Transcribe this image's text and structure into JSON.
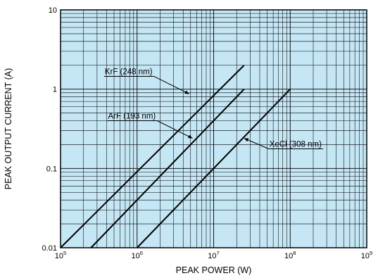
{
  "chart_data": {
    "type": "line",
    "title": "",
    "xlabel": "PEAK POWER (W)",
    "ylabel": "PEAK OUTPUT CURRENT (A)",
    "x_scale": "log",
    "y_scale": "log",
    "xlim": [
      100000,
      1000000000
    ],
    "ylim": [
      0.01,
      10
    ],
    "grid": true,
    "x_ticks": [
      {
        "base": "10",
        "exp": "5",
        "value": 100000
      },
      {
        "base": "10",
        "exp": "6",
        "value": 1000000
      },
      {
        "base": "10",
        "exp": "7",
        "value": 10000000
      },
      {
        "base": "10",
        "exp": "8",
        "value": 100000000
      },
      {
        "base": "10",
        "exp": "9",
        "value": 1000000000
      }
    ],
    "y_ticks": [
      {
        "label": "0.01",
        "value": 0.01
      },
      {
        "label": "0.1",
        "value": 0.1
      },
      {
        "label": "1",
        "value": 1
      },
      {
        "label": "10",
        "value": 10
      }
    ],
    "series": [
      {
        "name": "KrF (248 nm)",
        "points": [
          [
            100000,
            0.01
          ],
          [
            25000000,
            2
          ]
        ],
        "label_anchor": [
          4800000,
          0.87
        ]
      },
      {
        "name": "ArF (193 nm)",
        "points": [
          [
            250000,
            0.01
          ],
          [
            25000000,
            1
          ]
        ],
        "label_anchor": [
          5300000,
          0.24
        ]
      },
      {
        "name": "XeCl (308 nm)",
        "points": [
          [
            1000000,
            0.01
          ],
          [
            100000000,
            1
          ]
        ],
        "label_anchor": [
          25000000,
          0.24
        ]
      }
    ],
    "colors": {
      "plot_background": "#c5e6f5",
      "grid": "#000000",
      "lines": "#000000"
    }
  }
}
